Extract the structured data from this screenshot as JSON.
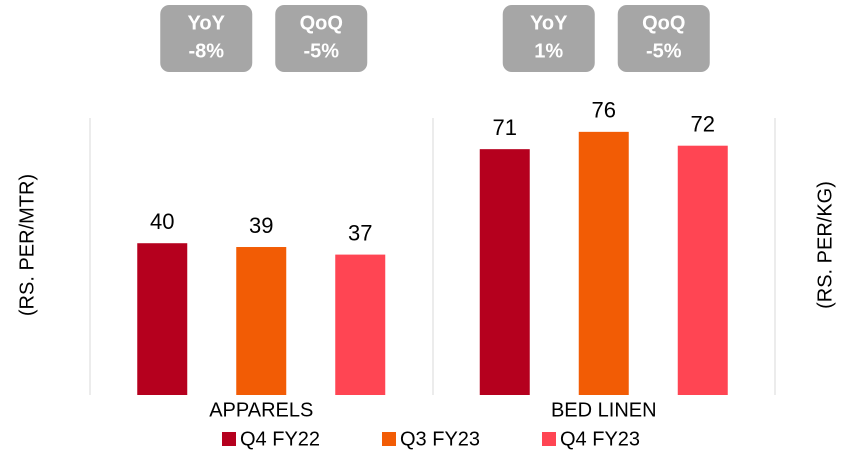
{
  "chart_data": {
    "type": "bar",
    "categories": [
      "APPARELS",
      "BED LINEN"
    ],
    "category_axes": [
      "y",
      "y2"
    ],
    "ylabel": "(RS. PER/MTR)",
    "y2label": "(RS. PER/KG)",
    "ylim": [
      0,
      73
    ],
    "y2lim": [
      0,
      80
    ],
    "series": [
      {
        "name": "Q4 FY22",
        "color": "#b5001e",
        "values": [
          40,
          71
        ]
      },
      {
        "name": "Q3 FY23",
        "color": "#f25c05",
        "values": [
          39,
          76
        ]
      },
      {
        "name": "Q4 FY23",
        "color": "#ff4553",
        "values": [
          37,
          72
        ]
      }
    ],
    "annotations": [
      [
        {
          "text": "YoY",
          "value": -8,
          "value_label": "-8%"
        },
        {
          "text": "QoQ",
          "value": -5,
          "value_label": "-5%"
        }
      ],
      [
        {
          "text": "YoY",
          "value": 1,
          "value_label": "1%"
        },
        {
          "text": "QoQ",
          "value": -5,
          "value_label": "-5%"
        }
      ]
    ],
    "legend": "bottom"
  }
}
